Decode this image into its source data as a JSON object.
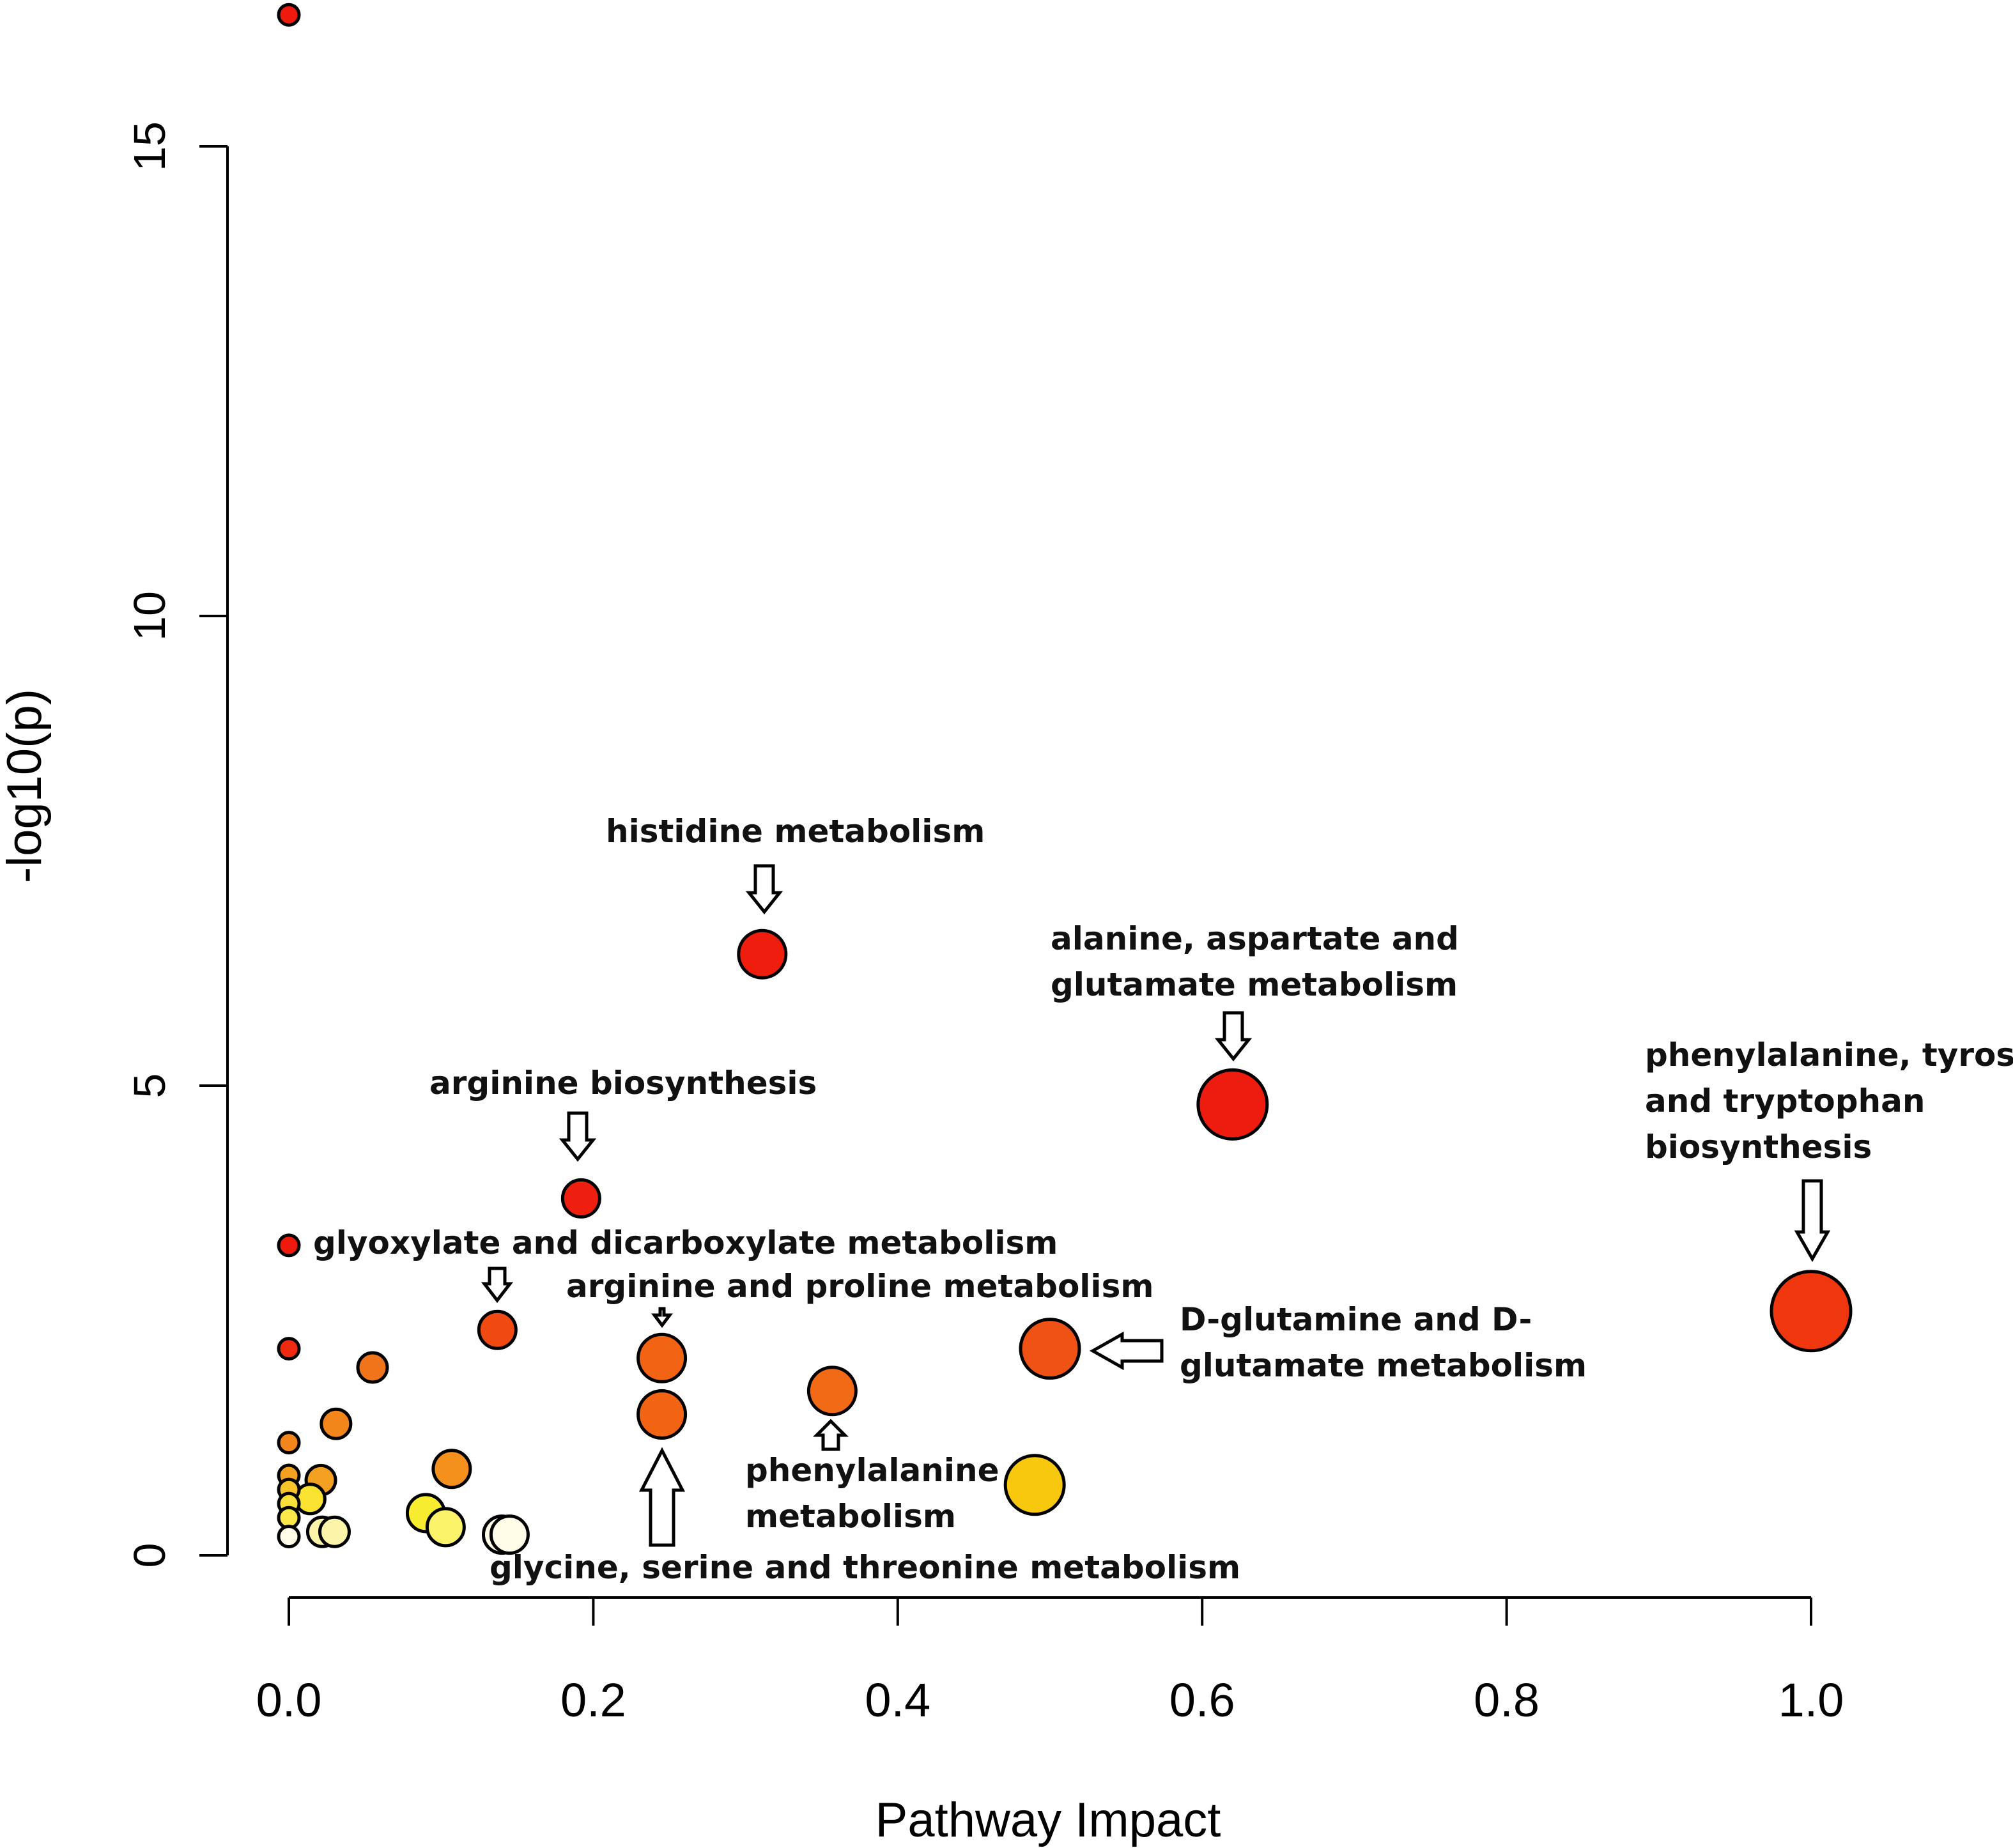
{
  "chart_data": {
    "type": "scatter",
    "title": "",
    "xlabel": "Pathway Impact",
    "ylabel": "-log10(p)",
    "xlim": [
      0.0,
      1.0
    ],
    "ylim": [
      0,
      15
    ],
    "xticks": [
      "0.0",
      "0.2",
      "0.4",
      "0.6",
      "0.8",
      "1.0"
    ],
    "yticks": [
      "0",
      "5",
      "10",
      "15"
    ],
    "grid": false,
    "legend": "none",
    "size_encodes": "pathway impact",
    "color_encodes": "-log10(p) (white → yellow → red)",
    "points": [
      {
        "x": 0.0,
        "y": 16.4,
        "size": 1,
        "color": "#ee1a0e"
      },
      {
        "x": 0.0,
        "y": 3.3,
        "size": 1,
        "color": "#ee1a0e"
      },
      {
        "x": 0.0,
        "y": 2.2,
        "size": 1,
        "color": "#f02a10"
      },
      {
        "x": 0.0,
        "y": 1.2,
        "size": 1,
        "color": "#f2861a"
      },
      {
        "x": 0.0,
        "y": 0.85,
        "size": 1,
        "color": "#f4a020"
      },
      {
        "x": 0.0,
        "y": 0.7,
        "size": 1,
        "color": "#f6c42a"
      },
      {
        "x": 0.0,
        "y": 0.55,
        "size": 1,
        "color": "#f9e03a"
      },
      {
        "x": 0.0,
        "y": 0.4,
        "size": 1,
        "color": "#fbe84a"
      },
      {
        "x": 0.0,
        "y": 0.2,
        "size": 1,
        "color": "#fffde8"
      },
      {
        "x": 0.021,
        "y": 0.8,
        "size": 2,
        "color": "#f4a020"
      },
      {
        "x": 0.014,
        "y": 0.6,
        "size": 2,
        "color": "#f9e230"
      },
      {
        "x": 0.022,
        "y": 0.25,
        "size": 2,
        "color": "#fcf4a8"
      },
      {
        "x": 0.03,
        "y": 0.25,
        "size": 2,
        "color": "#fcf4a8"
      },
      {
        "x": 0.031,
        "y": 1.4,
        "size": 2,
        "color": "#f2861a"
      },
      {
        "x": 0.055,
        "y": 2.0,
        "size": 2,
        "color": "#f2741a"
      },
      {
        "x": 0.09,
        "y": 0.45,
        "size": 3,
        "color": "#f8ec30"
      },
      {
        "x": 0.103,
        "y": 0.3,
        "size": 3,
        "color": "#fbf46a"
      },
      {
        "x": 0.107,
        "y": 0.92,
        "size": 3,
        "color": "#f4901c"
      },
      {
        "x": 0.14,
        "y": 0.22,
        "size": 3,
        "color": "#fffce8"
      },
      {
        "x": 0.145,
        "y": 0.22,
        "size": 3,
        "color": "#fffce8"
      },
      {
        "x": 0.137,
        "y": 2.4,
        "size": 3,
        "color": "#f04a12",
        "label": "glyoxylate and dicarboxylate metabolism"
      },
      {
        "x": 0.192,
        "y": 3.8,
        "size": 3,
        "color": "#ee1f0e",
        "label": "arginine biosynthesis"
      },
      {
        "x": 0.245,
        "y": 2.1,
        "size": 4,
        "color": "#f26414",
        "label": "arginine and proline metabolism"
      },
      {
        "x": 0.245,
        "y": 1.5,
        "size": 4,
        "color": "#f26414",
        "label": "glycine, serine and threonine metabolism"
      },
      {
        "x": 0.311,
        "y": 6.4,
        "size": 4,
        "color": "#ee1d0e",
        "label": "histidine metabolism"
      },
      {
        "x": 0.357,
        "y": 1.75,
        "size": 4,
        "color": "#f26a16",
        "label": "phenylalanine metabolism"
      },
      {
        "x": 0.49,
        "y": 0.75,
        "size": 5,
        "color": "#f8c80e"
      },
      {
        "x": 0.5,
        "y": 2.2,
        "size": 5,
        "color": "#f05216",
        "label": "D-glutamine and D-glutamate metabolism"
      },
      {
        "x": 0.62,
        "y": 4.8,
        "size": 6,
        "color": "#ee1c0e",
        "label": "alanine, aspartate and glutamate metabolism"
      },
      {
        "x": 1.0,
        "y": 2.6,
        "size": 7,
        "color": "#f0360e",
        "label": "phenylalanine, tyrosine and tryptophan biosynthesis"
      }
    ],
    "annotations": [
      {
        "lines": [
          "histidine metabolism"
        ],
        "target": 24,
        "arrow": "down"
      },
      {
        "lines": [
          "alanine, aspartate and",
          "glutamate metabolism"
        ],
        "target": 28,
        "arrow": "down"
      },
      {
        "lines": [
          "arginine biosynthesis"
        ],
        "target": 21,
        "arrow": "down"
      },
      {
        "lines": [
          "phenylalanine, tyrosine",
          "and tryptophan",
          "biosynthesis"
        ],
        "target": 29,
        "arrow": "down"
      },
      {
        "lines": [
          "glyoxylate and dicarboxylate metabolism"
        ],
        "target": 20,
        "arrow": "down"
      },
      {
        "lines": [
          "arginine and proline metabolism"
        ],
        "target": 22,
        "arrow": "down-small"
      },
      {
        "lines": [
          "D-glutamine and D-",
          "glutamate metabolism"
        ],
        "target": 27,
        "arrow": "left"
      },
      {
        "lines": [
          "phenylalanine",
          "metabolism"
        ],
        "target": 25,
        "arrow": "up-small"
      },
      {
        "lines": [
          "glycine, serine and threonine metabolism"
        ],
        "target": 23,
        "arrow": "up"
      }
    ]
  }
}
